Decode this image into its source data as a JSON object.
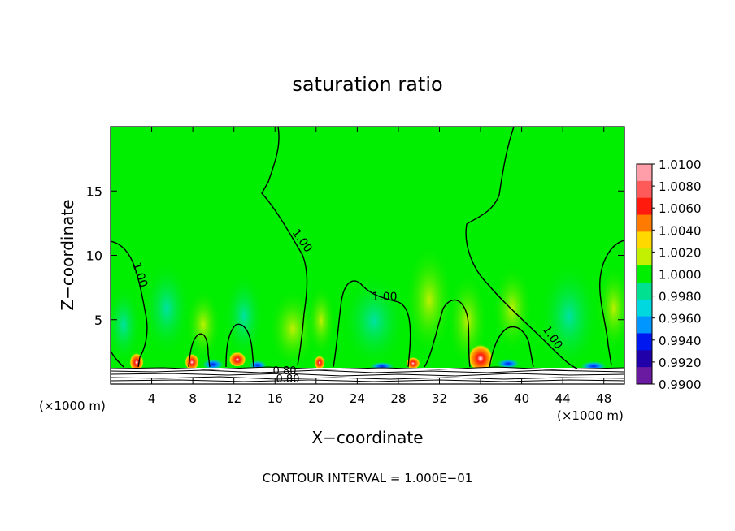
{
  "chart_data": {
    "type": "heatmap",
    "title": "saturation ratio",
    "xlabel": "X−coordinate",
    "ylabel": "Z−coordinate",
    "x_unit": "(×1000 m)",
    "footer": "CONTOUR INTERVAL = 1.000E−01",
    "xlim": [
      0,
      50
    ],
    "ylim": [
      0,
      20
    ],
    "x_ticks": [
      4,
      8,
      12,
      16,
      20,
      24,
      28,
      32,
      36,
      40,
      44,
      48
    ],
    "y_ticks": [
      5,
      10,
      15
    ],
    "colorbar": {
      "levels": [
        "1.0100",
        "1.0080",
        "1.0060",
        "1.0040",
        "1.0020",
        "1.0000",
        "0.9980",
        "0.9960",
        "0.9940",
        "0.9920",
        "0.9900"
      ],
      "colors": [
        "#ff9ea8",
        "#ff5a5a",
        "#ff1a0d",
        "#ff7a00",
        "#ffd800",
        "#c2f000",
        "#00ee00",
        "#00e090",
        "#00d8e0",
        "#0096ff",
        "#0018f0",
        "#2000a8",
        "#6a1aa0"
      ]
    },
    "background_value": "1.0000",
    "contour_labels": [
      "1.00",
      "1.00",
      "1.00",
      "1.00",
      "0.80",
      "0.80"
    ]
  }
}
